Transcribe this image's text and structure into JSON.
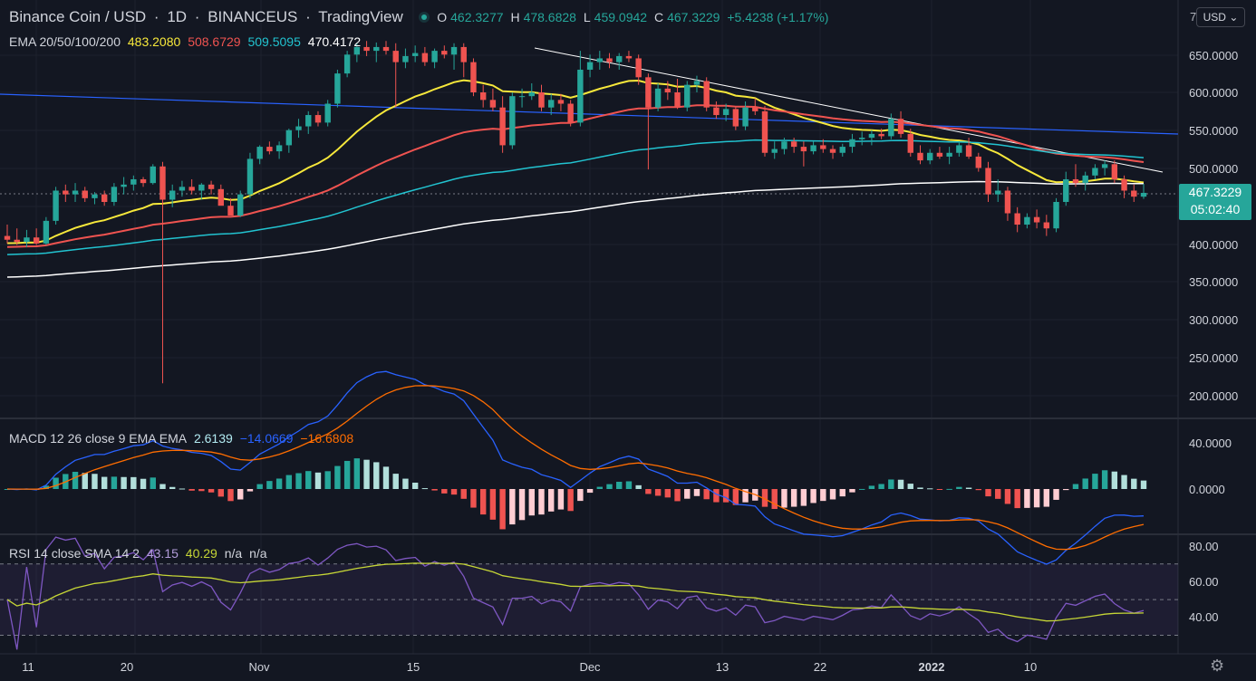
{
  "header": {
    "symbol": "Binance Coin / USD",
    "interval": "1D",
    "exchange": "BINANCEUS",
    "source": "TradingView",
    "open_label": "O",
    "open": "462.3277",
    "high_label": "H",
    "high": "478.6828",
    "low_label": "L",
    "low": "459.0942",
    "close_label": "C",
    "close": "467.3229",
    "change": "+5.4238 (+1.17%)",
    "currency": "USD",
    "currency_caret": "⌄",
    "top_axis_cut": "7"
  },
  "ema_legend": {
    "label": "EMA 20/50/100/200",
    "ema20": "483.2080",
    "ema50": "508.6729",
    "ema100": "509.5095",
    "ema200": "470.4172"
  },
  "macd_legend": {
    "label": "MACD 12 26 close 9 EMA EMA",
    "histogram": "2.6139",
    "macd": "−14.0669",
    "signal": "−16.6808"
  },
  "rsi_legend": {
    "label": "RSI 14 close SMA 14 2",
    "rsi": "43.15",
    "sma": "40.29",
    "na1": "n/a",
    "na2": "n/a"
  },
  "last_price": {
    "value": "467.3229",
    "countdown": "05:02:40"
  },
  "price_axis": [
    "650.0000",
    "600.0000",
    "550.0000",
    "500.0000",
    "400.0000",
    "350.0000",
    "300.0000",
    "250.0000",
    "200.0000"
  ],
  "macd_axis": [
    "40.0000",
    "0.0000"
  ],
  "rsi_axis": [
    "80.00",
    "60.00",
    "40.00"
  ],
  "time_axis": [
    "11",
    "20",
    "Nov",
    "15",
    "Dec",
    "13",
    "22",
    "2022",
    "10"
  ],
  "colors": {
    "background": "#131722",
    "up": "#26a69a",
    "down": "#ef5350",
    "ema20": "#f7e83b",
    "ema50": "#ef5350",
    "ema100": "#22c3d0",
    "ema200": "#ffffff",
    "macd": "#2962ff",
    "signal": "#ff6d00",
    "rsi": "#7e57c2",
    "rsi_sma": "#c6d636"
  },
  "icons": {
    "settings": "gear-icon",
    "live": "live-dot-icon"
  }
}
